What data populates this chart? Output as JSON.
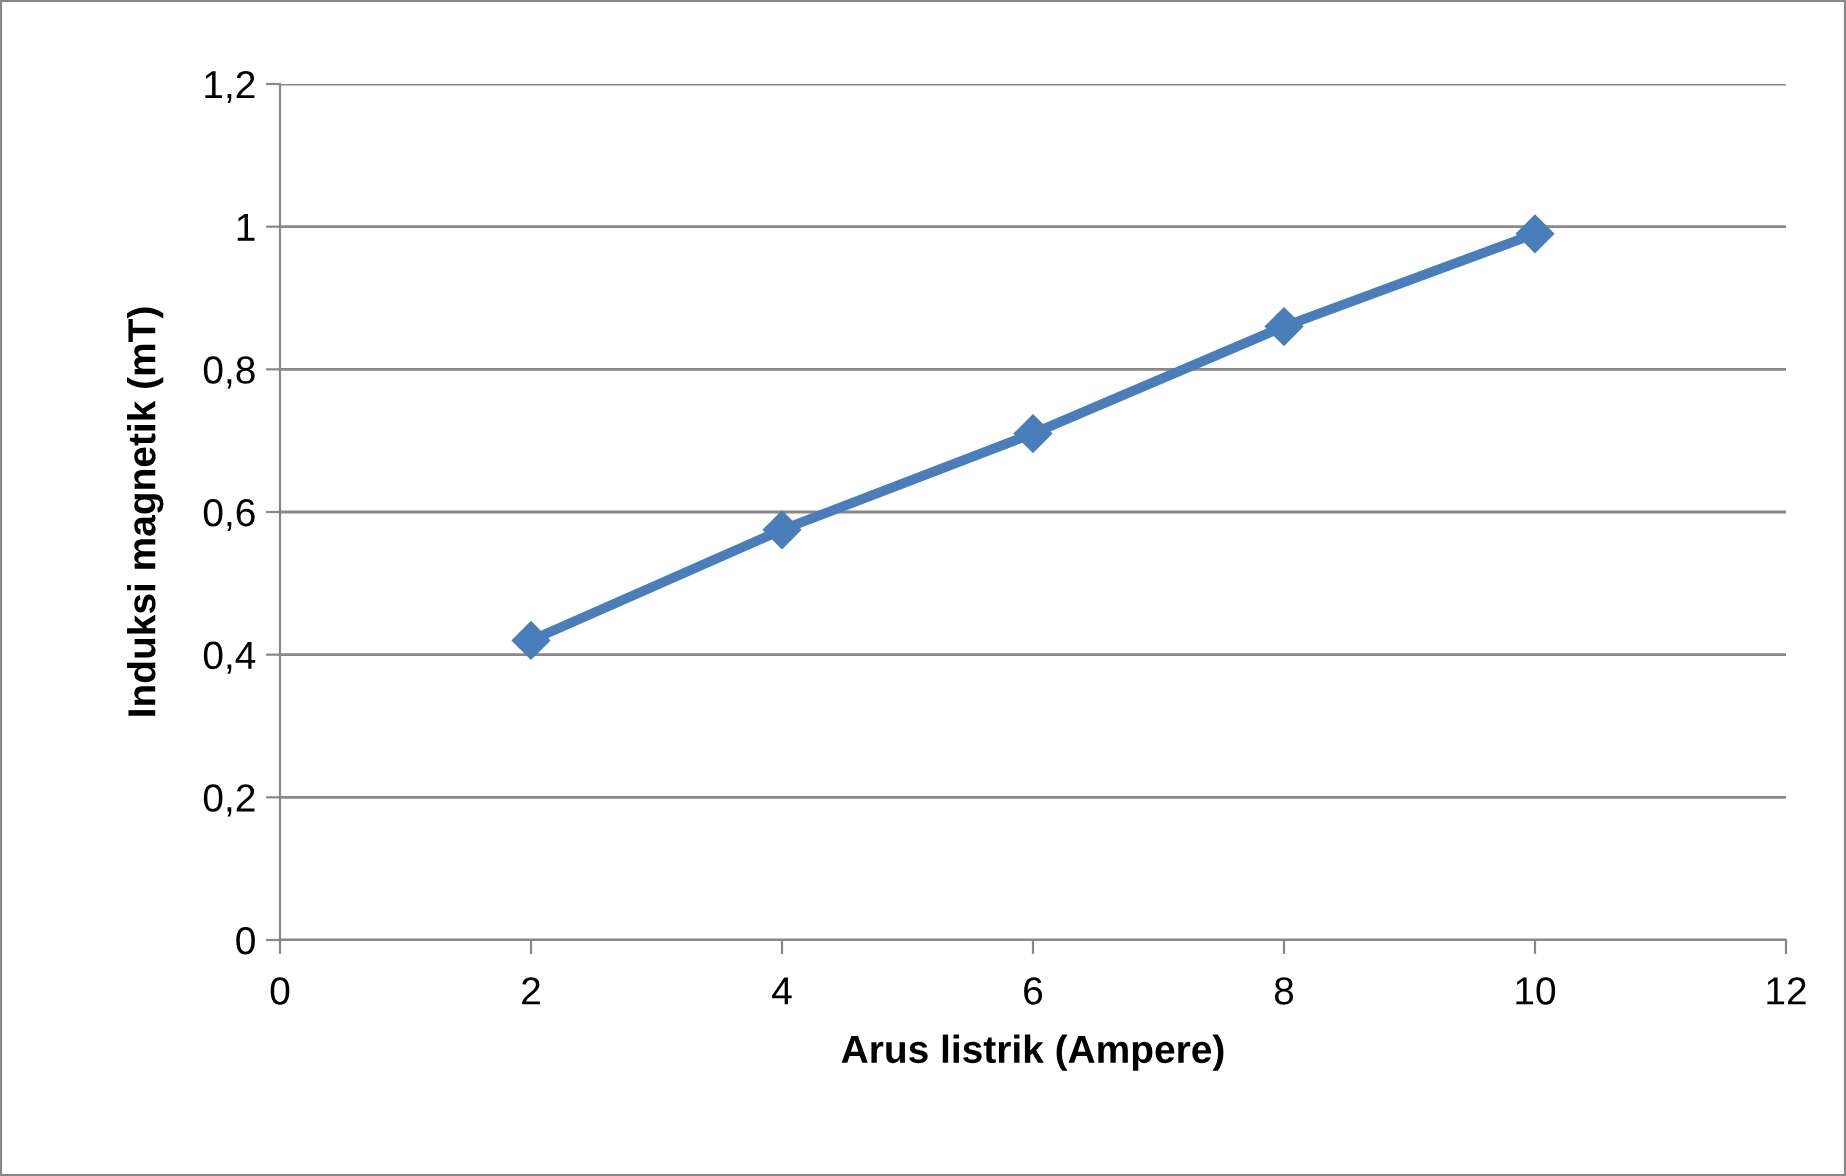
{
  "chart_data": {
    "type": "line",
    "xlabel": "Arus listrik (Ampere)",
    "ylabel": "Induksi magnetik (mT)",
    "x": [
      2,
      4,
      6,
      8,
      10
    ],
    "series": [
      {
        "color": "#4a7ebb",
        "values": [
          0.42,
          0.575,
          0.71,
          0.86,
          0.99
        ]
      }
    ],
    "xlim": [
      0,
      12
    ],
    "xticks": [
      0,
      2,
      4,
      6,
      8,
      10,
      12
    ],
    "ylim": [
      0,
      1.2
    ],
    "yticks": [
      0,
      {
        "value": 0.2,
        "label": "0,2"
      },
      {
        "value": 0.4,
        "label": "0,4"
      },
      {
        "value": 0.6,
        "label": "0,6"
      },
      {
        "value": 0.8,
        "label": "0,8"
      },
      1,
      {
        "value": 1.2,
        "label": "1,2"
      }
    ],
    "grid": "y",
    "marker": "diamond",
    "line_style": "solid",
    "legend": false
  }
}
